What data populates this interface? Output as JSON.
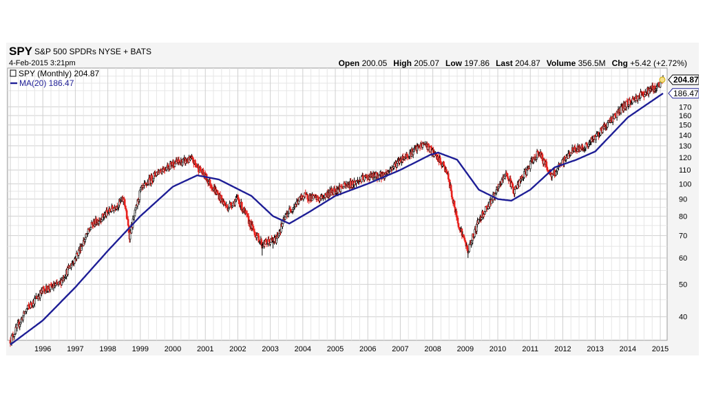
{
  "header": {
    "ticker": "SPY",
    "name": "S&P 500 SPDRs NYSE + BATS",
    "date": "4-Feb-2015 3:21pm",
    "stats": [
      {
        "label": "Open",
        "value": "200.05"
      },
      {
        "label": "High",
        "value": "205.07"
      },
      {
        "label": "Low",
        "value": "197.86"
      },
      {
        "label": "Last",
        "value": "204.87"
      },
      {
        "label": "Volume",
        "value": "356.5M"
      },
      {
        "label": "Chg",
        "value": "+5.42 (+2.72%)"
      }
    ]
  },
  "legend": {
    "price": "SPY (Monthly) 204.87",
    "ma": "MA(20) 186.47"
  },
  "price_label": "204.87",
  "ma_label": "186.47",
  "colors": {
    "up": "#000000",
    "down": "#e8201c",
    "ma": "#1e1e96",
    "grid": "#cfcfcf",
    "plot_bg": "#ffffff",
    "frame_bg": "#f4f4f4",
    "last_marker": "#f5e08a"
  },
  "chart_data": {
    "type": "candlestick",
    "scale": "log",
    "ylim": [
      34,
      222
    ],
    "y_ticks": [
      40,
      50,
      60,
      70,
      80,
      90,
      100,
      110,
      120,
      130,
      140,
      150,
      160,
      170
    ],
    "x_ticks": [
      "1996",
      "1997",
      "1998",
      "1999",
      "2000",
      "2001",
      "2002",
      "2003",
      "2004",
      "2005",
      "2006",
      "2007",
      "2008",
      "2009",
      "2010",
      "2011",
      "2012",
      "2013",
      "2014",
      "2015"
    ],
    "x_range": [
      "1995-01",
      "2015-02"
    ],
    "grid": true,
    "legend_position": "top-left",
    "price_anchors": [
      {
        "date": "1995-01",
        "close": 34
      },
      {
        "date": "1995-07",
        "close": 42
      },
      {
        "date": "1996-01",
        "close": 48
      },
      {
        "date": "1996-07",
        "close": 50
      },
      {
        "date": "1997-01",
        "close": 60
      },
      {
        "date": "1997-07",
        "close": 75
      },
      {
        "date": "1998-01",
        "close": 82
      },
      {
        "date": "1998-07",
        "close": 90
      },
      {
        "date": "1998-09",
        "close": 70
      },
      {
        "date": "1999-01",
        "close": 95
      },
      {
        "date": "1999-07",
        "close": 108
      },
      {
        "date": "2000-01",
        "close": 115
      },
      {
        "date": "2000-08",
        "close": 118
      },
      {
        "date": "2001-01",
        "close": 105
      },
      {
        "date": "2001-09",
        "close": 85
      },
      {
        "date": "2002-01",
        "close": 90
      },
      {
        "date": "2002-07",
        "close": 72
      },
      {
        "date": "2002-10",
        "close": 66
      },
      {
        "date": "2003-03",
        "close": 68
      },
      {
        "date": "2003-07",
        "close": 81
      },
      {
        "date": "2004-01",
        "close": 92
      },
      {
        "date": "2004-07",
        "close": 90
      },
      {
        "date": "2005-01",
        "close": 96
      },
      {
        "date": "2005-07",
        "close": 100
      },
      {
        "date": "2006-01",
        "close": 105
      },
      {
        "date": "2006-07",
        "close": 106
      },
      {
        "date": "2007-01",
        "close": 118
      },
      {
        "date": "2007-10",
        "close": 132
      },
      {
        "date": "2008-01",
        "close": 124
      },
      {
        "date": "2008-06",
        "close": 110
      },
      {
        "date": "2008-10",
        "close": 78
      },
      {
        "date": "2009-02",
        "close": 63
      },
      {
        "date": "2009-06",
        "close": 78
      },
      {
        "date": "2010-01",
        "close": 96
      },
      {
        "date": "2010-04",
        "close": 108
      },
      {
        "date": "2010-07",
        "close": 95
      },
      {
        "date": "2011-04",
        "close": 125
      },
      {
        "date": "2011-09",
        "close": 105
      },
      {
        "date": "2012-04",
        "close": 125
      },
      {
        "date": "2012-10",
        "close": 130
      },
      {
        "date": "2013-05",
        "close": 150
      },
      {
        "date": "2013-12",
        "close": 172
      },
      {
        "date": "2014-06",
        "close": 185
      },
      {
        "date": "2014-12",
        "close": 196
      },
      {
        "date": "2015-02",
        "close": 204.87
      }
    ],
    "ma_anchors": [
      {
        "date": "1995-01",
        "value": 33
      },
      {
        "date": "1996-01",
        "value": 39
      },
      {
        "date": "1997-01",
        "value": 49
      },
      {
        "date": "1998-01",
        "value": 63
      },
      {
        "date": "1999-01",
        "value": 80
      },
      {
        "date": "2000-01",
        "value": 98
      },
      {
        "date": "2000-10",
        "value": 106
      },
      {
        "date": "2001-06",
        "value": 103
      },
      {
        "date": "2002-06",
        "value": 92
      },
      {
        "date": "2003-02",
        "value": 80
      },
      {
        "date": "2003-08",
        "value": 76
      },
      {
        "date": "2004-03",
        "value": 82
      },
      {
        "date": "2005-01",
        "value": 92
      },
      {
        "date": "2006-01",
        "value": 100
      },
      {
        "date": "2007-01",
        "value": 110
      },
      {
        "date": "2007-12",
        "value": 122
      },
      {
        "date": "2008-03",
        "value": 124
      },
      {
        "date": "2008-10",
        "value": 118
      },
      {
        "date": "2009-06",
        "value": 96
      },
      {
        "date": "2010-01",
        "value": 90
      },
      {
        "date": "2010-06",
        "value": 89
      },
      {
        "date": "2011-01",
        "value": 96
      },
      {
        "date": "2011-10",
        "value": 112
      },
      {
        "date": "2012-06",
        "value": 118
      },
      {
        "date": "2013-01",
        "value": 125
      },
      {
        "date": "2014-01",
        "value": 158
      },
      {
        "date": "2015-02",
        "value": 186.47
      }
    ],
    "series": [
      {
        "name": "SPY (Monthly)",
        "last": 204.87
      },
      {
        "name": "MA(20)",
        "last": 186.47
      }
    ]
  }
}
